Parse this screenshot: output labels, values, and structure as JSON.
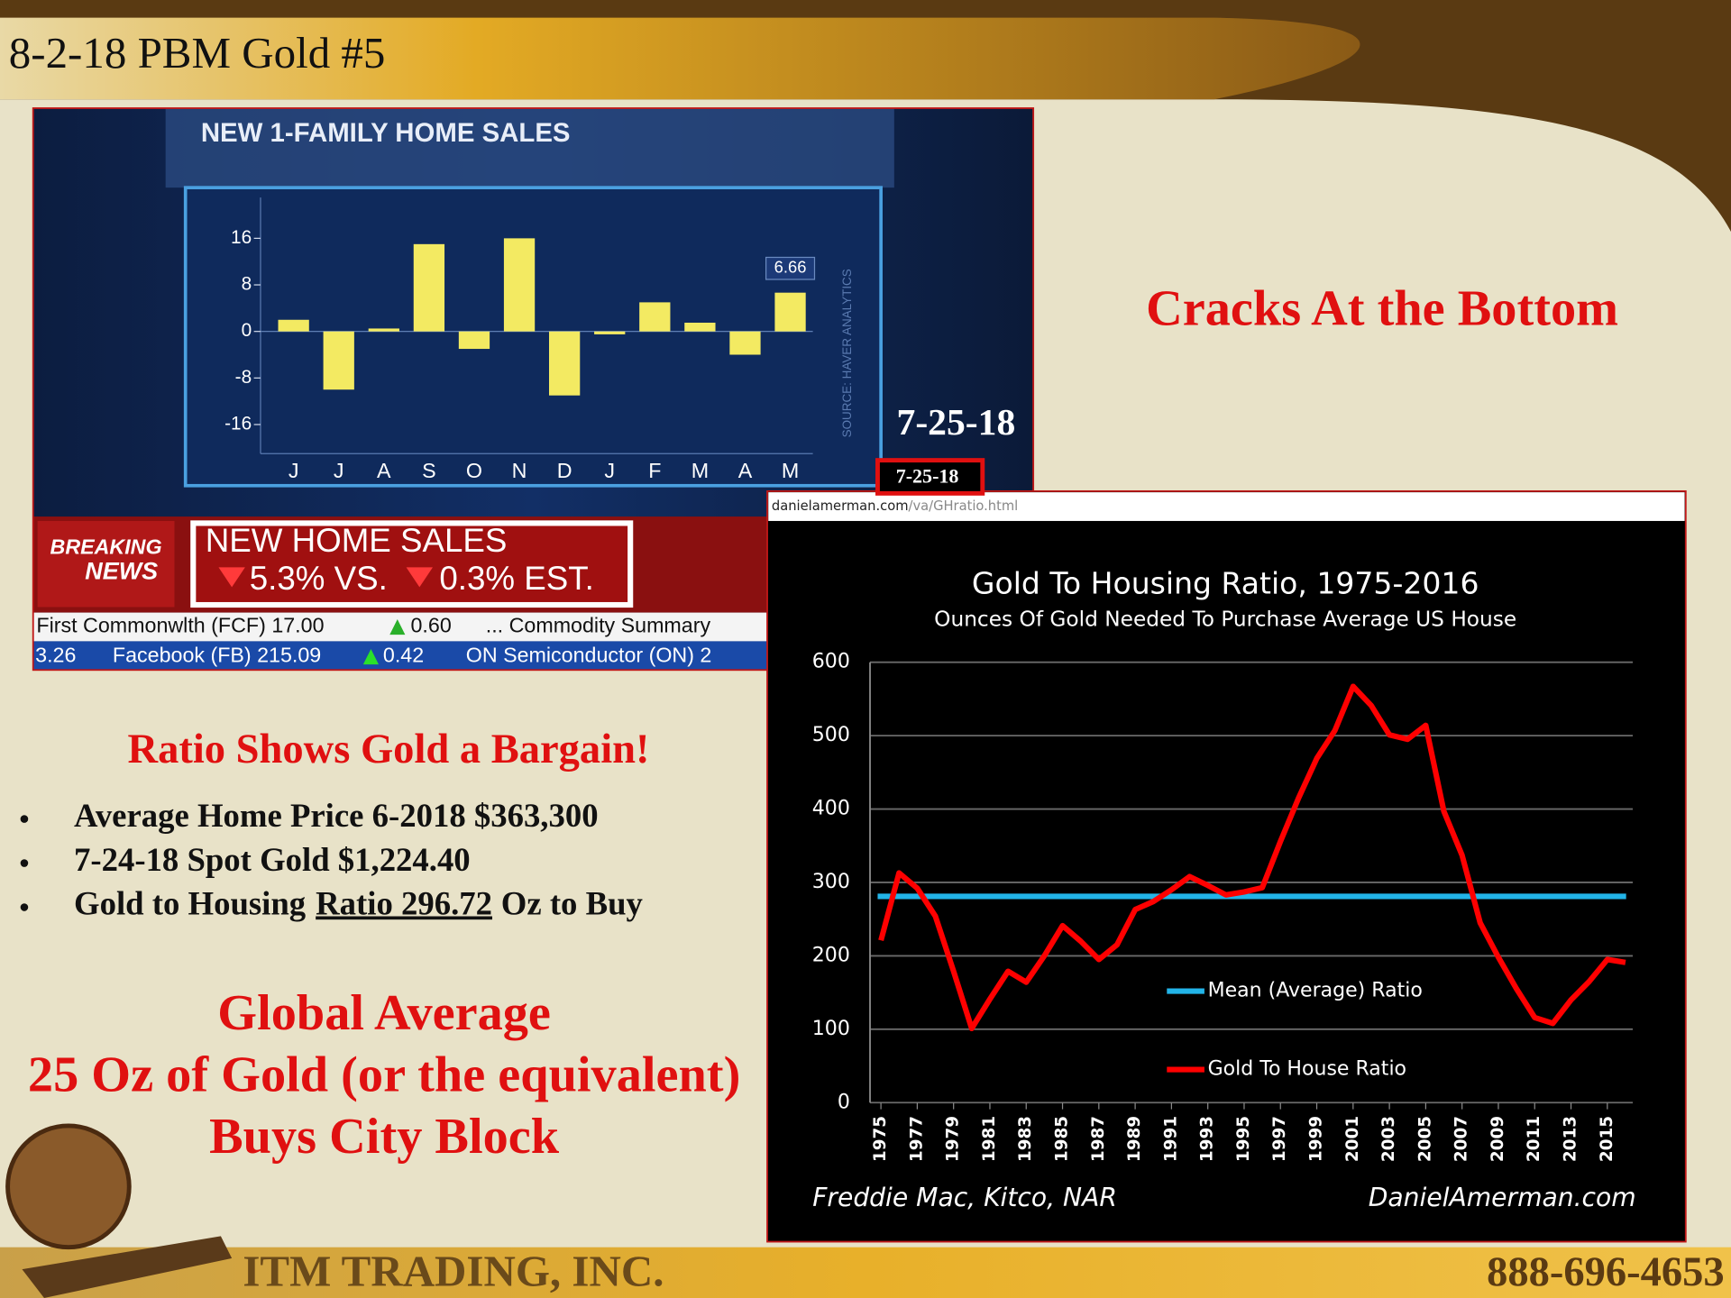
{
  "header": {
    "title": "8-2-18 PBM Gold #5"
  },
  "headline": "Cracks At the Bottom",
  "tv": {
    "date_large": "7-25-18",
    "date_small": "7-25-18",
    "source": "SOURCE: HAVER ANALYTICS",
    "breaking": [
      "BREAKING",
      "NEWS"
    ],
    "banner": {
      "title": "NEW HOME SALES",
      "actual": "5.3% VS.",
      "estimate": "0.3% EST."
    },
    "ticker": [
      [
        "First Commonwlth (FCF) 17.00",
        "0.60",
        "... Commodity Summary"
      ],
      [
        "3.26",
        "Facebook (FB) 215.09",
        "0.42",
        "ON Semiconductor (ON) 2"
      ]
    ]
  },
  "web": {
    "url_host": "danielamerman.com",
    "url_path": "/va/GHratio.html",
    "sources": "Freddie Mac, Kitco, NAR",
    "site": "DanielAmerman.com"
  },
  "chart_data": [
    {
      "type": "bar",
      "title": "NEW 1-FAMILY HOME SALES",
      "categories": [
        "J",
        "J",
        "A",
        "S",
        "O",
        "N",
        "D",
        "J",
        "F",
        "M",
        "A",
        "M"
      ],
      "values": [
        2,
        -10,
        0.5,
        15,
        -3,
        16,
        -11,
        -0.5,
        5,
        1.5,
        -4,
        6.66
      ],
      "value_labels": [
        null,
        null,
        null,
        null,
        null,
        null,
        null,
        null,
        null,
        null,
        null,
        "6.66"
      ],
      "color": "#f3ea62",
      "ylim": [
        -21,
        23
      ],
      "yticks": [
        16,
        8,
        0,
        -8,
        -16
      ]
    },
    {
      "type": "line",
      "title": "Gold To  Housing Ratio, 1975-2016",
      "subtitle": "Ounces Of Gold Needed To Purchase Average US House",
      "x": [
        1975,
        1976,
        1977,
        1978,
        1979,
        1980,
        1981,
        1982,
        1983,
        1984,
        1985,
        1986,
        1987,
        1988,
        1989,
        1990,
        1991,
        1992,
        1993,
        1994,
        1995,
        1996,
        1997,
        1998,
        1999,
        2000,
        2001,
        2002,
        2003,
        2004,
        2005,
        2006,
        2007,
        2008,
        2009,
        2010,
        2011,
        2012,
        2013,
        2014,
        2015,
        2016
      ],
      "series": [
        {
          "name": "Gold To House Ratio",
          "color": "#ff0000",
          "values": [
            221,
            313,
            292,
            254,
            179,
            101,
            141,
            179,
            164,
            200,
            241,
            220,
            195,
            215,
            263,
            274,
            290,
            308,
            296,
            283,
            287,
            293,
            356,
            415,
            469,
            507,
            567,
            541,
            501,
            495,
            514,
            397,
            337,
            245,
            198,
            155,
            116,
            108,
            140,
            165,
            195,
            191
          ]
        }
      ],
      "reference_line": {
        "name": "Mean (Average) Ratio",
        "value": 281,
        "color": "#22b4e8"
      },
      "xlim": [
        1974.4,
        2016.4
      ],
      "xticks": [
        1975,
        1977,
        1979,
        1981,
        1983,
        1985,
        1987,
        1989,
        1991,
        1993,
        1995,
        1997,
        1999,
        2001,
        2003,
        2005,
        2007,
        2009,
        2011,
        2013,
        2015
      ],
      "ylim": [
        0,
        600
      ],
      "yticks": [
        0,
        100,
        200,
        300,
        400,
        500,
        600
      ],
      "grid": true
    }
  ],
  "notes": {
    "heading": "Ratio Shows Gold a Bargain!",
    "bullets": [
      "Average Home Price 6-2018 $363,300",
      "7-24-18 Spot Gold $1,224.40"
    ],
    "bullet3": [
      "Gold to Housing",
      "Ratio 296.72",
      "Oz to Buy"
    ],
    "global": [
      "Global Average",
      "25 Oz of Gold (or the equivalent)",
      "Buys City Block"
    ]
  },
  "footer": {
    "company": "ITM TRADING, INC.",
    "phone": "888-696-4653"
  }
}
